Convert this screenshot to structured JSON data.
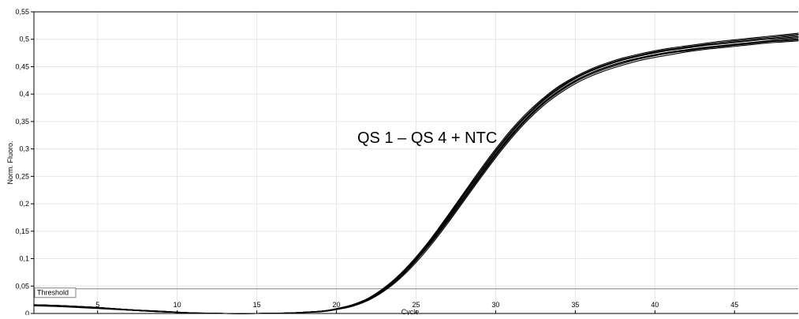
{
  "chart_data": {
    "type": "line",
    "title": "",
    "annotation": "QS 1 – QS 4 + NTC",
    "xlabel": "Cycle",
    "ylabel": "Norm. Fluoro.",
    "xlim": [
      1,
      49
    ],
    "ylim": [
      0,
      0.55
    ],
    "grid": true,
    "x_ticks": [
      5,
      10,
      15,
      20,
      25,
      30,
      35,
      40,
      45
    ],
    "x_tick_labels": [
      "5",
      "10",
      "15",
      "20",
      "25",
      "30",
      "35",
      "40",
      "45"
    ],
    "y_ticks": [
      0,
      0.05,
      0.1,
      0.15,
      0.2,
      0.25,
      0.3,
      0.35,
      0.4,
      0.45,
      0.5,
      0.55
    ],
    "y_tick_labels": [
      "0",
      "0,05",
      "0,1",
      "0,15",
      "0,2",
      "0,25",
      "0,3",
      "0,35",
      "0,4",
      "0,45",
      "0,5",
      "0,55"
    ],
    "threshold": {
      "label": "Threshold",
      "value": 0.045
    },
    "colors": {
      "series": "#000000",
      "threshold": "#808080",
      "grid": "#e6e6e6"
    },
    "x": [
      1,
      3,
      5,
      7,
      9,
      11,
      13,
      15,
      17,
      19,
      20,
      21,
      22,
      23,
      24,
      25,
      26,
      27,
      28,
      29,
      30,
      31,
      32,
      33,
      34,
      35,
      36,
      37,
      38,
      39,
      40,
      41,
      42,
      43,
      44,
      45,
      46,
      47,
      48,
      49
    ],
    "series": [
      {
        "values": [
          0.016,
          0.014,
          0.011,
          0.007,
          0.004,
          0.001,
          0.0,
          0.0,
          0.001,
          0.004,
          0.008,
          0.015,
          0.027,
          0.046,
          0.07,
          0.101,
          0.136,
          0.175,
          0.216,
          0.256,
          0.295,
          0.331,
          0.362,
          0.389,
          0.411,
          0.429,
          0.443,
          0.454,
          0.463,
          0.47,
          0.476,
          0.481,
          0.485,
          0.489,
          0.492,
          0.495,
          0.498,
          0.501,
          0.504,
          0.507
        ]
      },
      {
        "values": [
          0.016,
          0.014,
          0.011,
          0.007,
          0.004,
          0.001,
          0.0,
          0.0,
          0.001,
          0.004,
          0.009,
          0.016,
          0.028,
          0.047,
          0.072,
          0.103,
          0.139,
          0.179,
          0.22,
          0.261,
          0.3,
          0.336,
          0.367,
          0.393,
          0.415,
          0.432,
          0.446,
          0.457,
          0.466,
          0.473,
          0.479,
          0.484,
          0.488,
          0.492,
          0.496,
          0.499,
          0.502,
          0.505,
          0.508,
          0.511
        ]
      },
      {
        "values": [
          0.015,
          0.013,
          0.01,
          0.006,
          0.003,
          0.001,
          0.0,
          0.0,
          0.001,
          0.004,
          0.008,
          0.014,
          0.025,
          0.043,
          0.066,
          0.096,
          0.13,
          0.168,
          0.208,
          0.248,
          0.287,
          0.323,
          0.355,
          0.382,
          0.404,
          0.422,
          0.436,
          0.447,
          0.456,
          0.464,
          0.47,
          0.475,
          0.479,
          0.483,
          0.486,
          0.489,
          0.492,
          0.495,
          0.497,
          0.499
        ]
      },
      {
        "values": [
          0.015,
          0.013,
          0.01,
          0.006,
          0.003,
          0.001,
          0.0,
          0.0,
          0.001,
          0.004,
          0.008,
          0.014,
          0.026,
          0.044,
          0.068,
          0.098,
          0.133,
          0.172,
          0.212,
          0.252,
          0.291,
          0.327,
          0.358,
          0.385,
          0.407,
          0.425,
          0.439,
          0.45,
          0.459,
          0.466,
          0.472,
          0.477,
          0.481,
          0.485,
          0.488,
          0.491,
          0.494,
          0.497,
          0.5,
          0.503
        ]
      },
      {
        "values": [
          0.016,
          0.014,
          0.011,
          0.007,
          0.004,
          0.001,
          0.0,
          0.0,
          0.001,
          0.004,
          0.008,
          0.015,
          0.026,
          0.045,
          0.069,
          0.1,
          0.135,
          0.174,
          0.215,
          0.255,
          0.294,
          0.33,
          0.361,
          0.388,
          0.41,
          0.428,
          0.442,
          0.453,
          0.462,
          0.469,
          0.475,
          0.48,
          0.484,
          0.488,
          0.491,
          0.494,
          0.497,
          0.5,
          0.502,
          0.505
        ]
      },
      {
        "values": [
          0.014,
          0.012,
          0.009,
          0.006,
          0.003,
          0.001,
          0.0,
          0.0,
          0.001,
          0.003,
          0.007,
          0.013,
          0.024,
          0.041,
          0.064,
          0.093,
          0.127,
          0.165,
          0.205,
          0.245,
          0.284,
          0.32,
          0.352,
          0.379,
          0.401,
          0.419,
          0.433,
          0.444,
          0.453,
          0.461,
          0.467,
          0.472,
          0.477,
          0.481,
          0.484,
          0.487,
          0.49,
          0.493,
          0.495,
          0.497
        ]
      },
      {
        "values": [
          0.015,
          0.013,
          0.01,
          0.006,
          0.003,
          0.001,
          0.0,
          0.0,
          0.001,
          0.004,
          0.008,
          0.015,
          0.027,
          0.046,
          0.071,
          0.102,
          0.138,
          0.177,
          0.218,
          0.258,
          0.297,
          0.333,
          0.364,
          0.391,
          0.413,
          0.43,
          0.444,
          0.455,
          0.464,
          0.471,
          0.477,
          0.482,
          0.486,
          0.49,
          0.494,
          0.497,
          0.5,
          0.503,
          0.506,
          0.509
        ]
      },
      {
        "values": [
          0.016,
          0.014,
          0.011,
          0.007,
          0.004,
          0.001,
          0.0,
          0.0,
          0.001,
          0.004,
          0.008,
          0.014,
          0.025,
          0.043,
          0.067,
          0.097,
          0.131,
          0.17,
          0.21,
          0.25,
          0.289,
          0.325,
          0.357,
          0.384,
          0.406,
          0.424,
          0.438,
          0.449,
          0.458,
          0.465,
          0.471,
          0.476,
          0.48,
          0.484,
          0.487,
          0.49,
          0.493,
          0.496,
          0.498,
          0.501
        ]
      }
    ]
  }
}
